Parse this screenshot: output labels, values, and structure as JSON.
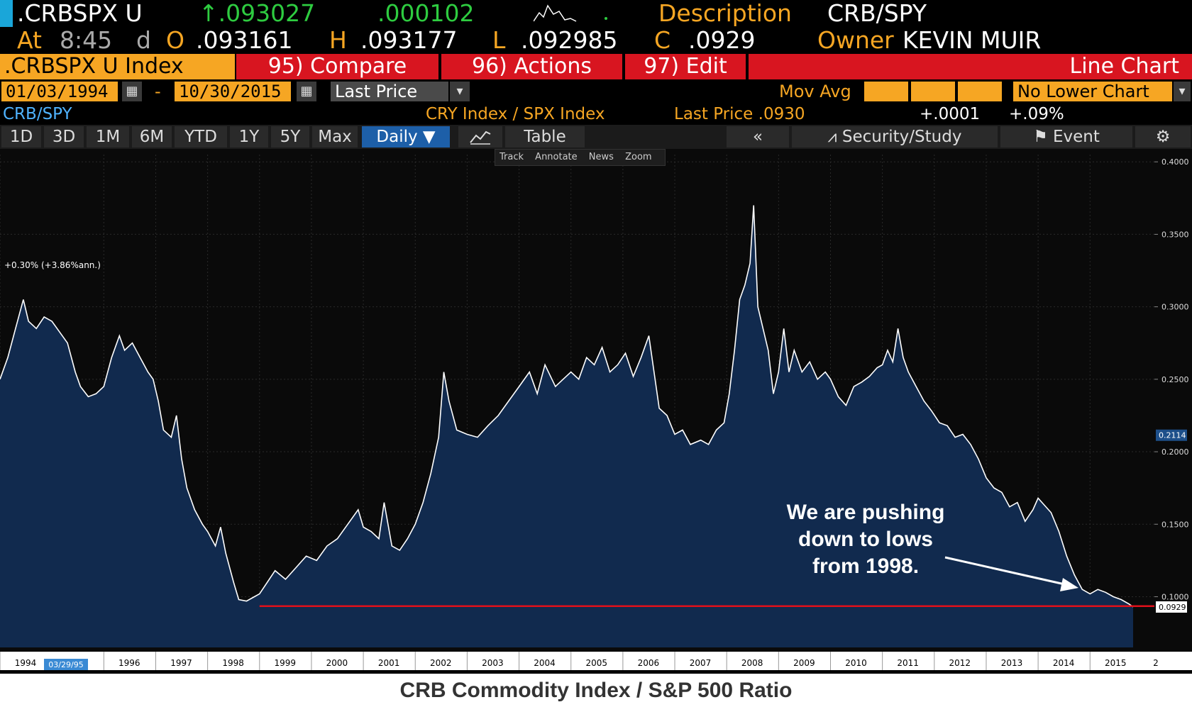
{
  "header": {
    "ticker": ".CRBSPX U",
    "last": "↑.093027",
    "change": ".000102",
    "description_label": "Description",
    "description_value": "CRB/SPY",
    "at_label": "At",
    "time": "8:45",
    "d_label": "d",
    "open_label": "O",
    "open": ".093161",
    "high_label": "H",
    "high": ".093177",
    "low_label": "L",
    "low": ".092985",
    "close_label": "C",
    "close": ".0929",
    "owner_label": "Owner",
    "owner": "KEVIN MUIR"
  },
  "menu": {
    "index_name": ".CRBSPX U Index",
    "compare": "95) Compare",
    "actions": "96) Actions",
    "edit": "97) Edit",
    "chart_type": "Line Chart"
  },
  "range": {
    "start_date": "01/03/1994",
    "dash": "-",
    "end_date": "10/30/2015",
    "price_field": "Last Price",
    "mov_avg": "Mov Avg",
    "lower_chart": "No Lower Chart"
  },
  "info": {
    "security": "CRB/SPY",
    "formula": "CRY Index / SPX Index",
    "last_price": "Last Price .0930",
    "net_change": "+.0001",
    "pct_change": "+.09%"
  },
  "tabs": [
    "1D",
    "3D",
    "1M",
    "6M",
    "YTD",
    "1Y",
    "5Y",
    "Max"
  ],
  "daily": "Daily ▼",
  "table_label": "Table",
  "back_label": "«",
  "study_label": "Security/Study",
  "event_label": "Event",
  "mini_tools": [
    "Track",
    "Annotate",
    "News",
    "Zoom"
  ],
  "colors": {
    "amber": "#f6a623",
    "red_bar": "#d81520",
    "area_fill": "#112a4e",
    "line": "#ffffff",
    "support_line": "#e0101a"
  },
  "chart_data": {
    "type": "area",
    "title": "CRB Commodity Index / S&P 500 Ratio",
    "annotation_top": "+0.30% (+3.86%ann.)",
    "annotation_callout": [
      "We are pushing",
      "down to lows",
      "from 1998."
    ],
    "x_ticks": [
      "1994",
      "1996",
      "1997",
      "1998",
      "1999",
      "2000",
      "2001",
      "2002",
      "2003",
      "2004",
      "2005",
      "2006",
      "2007",
      "2008",
      "2009",
      "2010",
      "2011",
      "2012",
      "2013",
      "2014",
      "2015",
      "2"
    ],
    "x_tick_date_label": "03/29/95",
    "y_ticks": [
      "0.4000",
      "0.3500",
      "0.3000",
      "0.2500",
      "0.2000",
      "0.1500",
      "0.1000"
    ],
    "y_range": [
      0.065,
      0.405
    ],
    "x_range": [
      1994.0,
      2015.83
    ],
    "marker_value_1": "0.2114",
    "marker_value_2": "0.0929",
    "support_level": 0.0935,
    "support_start_year": 1999.0,
    "series": [
      {
        "points": [
          [
            1994.0,
            0.25
          ],
          [
            1994.15,
            0.265
          ],
          [
            1994.3,
            0.285
          ],
          [
            1994.45,
            0.305
          ],
          [
            1994.55,
            0.29
          ],
          [
            1994.7,
            0.285
          ],
          [
            1994.85,
            0.293
          ],
          [
            1995.0,
            0.29
          ],
          [
            1995.1,
            0.285
          ],
          [
            1995.3,
            0.275
          ],
          [
            1995.45,
            0.255
          ],
          [
            1995.55,
            0.245
          ],
          [
            1995.7,
            0.238
          ],
          [
            1995.85,
            0.24
          ],
          [
            1996.0,
            0.245
          ],
          [
            1996.15,
            0.265
          ],
          [
            1996.3,
            0.28
          ],
          [
            1996.4,
            0.27
          ],
          [
            1996.55,
            0.275
          ],
          [
            1996.7,
            0.265
          ],
          [
            1996.85,
            0.255
          ],
          [
            1996.95,
            0.25
          ],
          [
            1997.05,
            0.235
          ],
          [
            1997.15,
            0.215
          ],
          [
            1997.3,
            0.21
          ],
          [
            1997.4,
            0.225
          ],
          [
            1997.5,
            0.195
          ],
          [
            1997.6,
            0.175
          ],
          [
            1997.75,
            0.16
          ],
          [
            1997.9,
            0.15
          ],
          [
            1998.0,
            0.145
          ],
          [
            1998.15,
            0.135
          ],
          [
            1998.25,
            0.148
          ],
          [
            1998.35,
            0.13
          ],
          [
            1998.5,
            0.11
          ],
          [
            1998.6,
            0.098
          ],
          [
            1998.75,
            0.097
          ],
          [
            1998.9,
            0.1
          ],
          [
            1999.0,
            0.102
          ],
          [
            1999.15,
            0.11
          ],
          [
            1999.3,
            0.118
          ],
          [
            1999.5,
            0.112
          ],
          [
            1999.7,
            0.12
          ],
          [
            1999.9,
            0.128
          ],
          [
            2000.1,
            0.125
          ],
          [
            2000.3,
            0.135
          ],
          [
            2000.5,
            0.14
          ],
          [
            2000.7,
            0.15
          ],
          [
            2000.9,
            0.16
          ],
          [
            2001.0,
            0.148
          ],
          [
            2001.15,
            0.145
          ],
          [
            2001.3,
            0.14
          ],
          [
            2001.4,
            0.165
          ],
          [
            2001.55,
            0.135
          ],
          [
            2001.7,
            0.132
          ],
          [
            2001.85,
            0.14
          ],
          [
            2002.0,
            0.15
          ],
          [
            2002.15,
            0.165
          ],
          [
            2002.3,
            0.185
          ],
          [
            2002.45,
            0.21
          ],
          [
            2002.55,
            0.255
          ],
          [
            2002.65,
            0.235
          ],
          [
            2002.8,
            0.215
          ],
          [
            2003.0,
            0.212
          ],
          [
            2003.2,
            0.21
          ],
          [
            2003.4,
            0.218
          ],
          [
            2003.6,
            0.225
          ],
          [
            2003.8,
            0.235
          ],
          [
            2004.0,
            0.245
          ],
          [
            2004.2,
            0.255
          ],
          [
            2004.35,
            0.24
          ],
          [
            2004.5,
            0.26
          ],
          [
            2004.7,
            0.245
          ],
          [
            2004.85,
            0.25
          ],
          [
            2005.0,
            0.255
          ],
          [
            2005.15,
            0.25
          ],
          [
            2005.3,
            0.265
          ],
          [
            2005.45,
            0.26
          ],
          [
            2005.6,
            0.272
          ],
          [
            2005.75,
            0.255
          ],
          [
            2005.9,
            0.26
          ],
          [
            2006.05,
            0.268
          ],
          [
            2006.2,
            0.252
          ],
          [
            2006.35,
            0.265
          ],
          [
            2006.5,
            0.28
          ],
          [
            2006.6,
            0.255
          ],
          [
            2006.7,
            0.23
          ],
          [
            2006.85,
            0.225
          ],
          [
            2007.0,
            0.212
          ],
          [
            2007.15,
            0.215
          ],
          [
            2007.3,
            0.205
          ],
          [
            2007.5,
            0.208
          ],
          [
            2007.65,
            0.205
          ],
          [
            2007.8,
            0.215
          ],
          [
            2007.95,
            0.22
          ],
          [
            2008.05,
            0.24
          ],
          [
            2008.15,
            0.27
          ],
          [
            2008.25,
            0.305
          ],
          [
            2008.35,
            0.315
          ],
          [
            2008.45,
            0.33
          ],
          [
            2008.52,
            0.37
          ],
          [
            2008.6,
            0.3
          ],
          [
            2008.7,
            0.285
          ],
          [
            2008.8,
            0.27
          ],
          [
            2008.9,
            0.24
          ],
          [
            2009.0,
            0.255
          ],
          [
            2009.1,
            0.285
          ],
          [
            2009.2,
            0.255
          ],
          [
            2009.3,
            0.27
          ],
          [
            2009.45,
            0.255
          ],
          [
            2009.6,
            0.262
          ],
          [
            2009.75,
            0.25
          ],
          [
            2009.9,
            0.255
          ],
          [
            2010.0,
            0.25
          ],
          [
            2010.15,
            0.238
          ],
          [
            2010.3,
            0.232
          ],
          [
            2010.45,
            0.245
          ],
          [
            2010.6,
            0.248
          ],
          [
            2010.75,
            0.252
          ],
          [
            2010.9,
            0.258
          ],
          [
            2011.0,
            0.26
          ],
          [
            2011.1,
            0.27
          ],
          [
            2011.2,
            0.262
          ],
          [
            2011.3,
            0.285
          ],
          [
            2011.4,
            0.265
          ],
          [
            2011.5,
            0.255
          ],
          [
            2011.65,
            0.245
          ],
          [
            2011.8,
            0.235
          ],
          [
            2011.95,
            0.228
          ],
          [
            2012.1,
            0.22
          ],
          [
            2012.25,
            0.218
          ],
          [
            2012.4,
            0.21
          ],
          [
            2012.55,
            0.212
          ],
          [
            2012.7,
            0.205
          ],
          [
            2012.85,
            0.195
          ],
          [
            2013.0,
            0.182
          ],
          [
            2013.15,
            0.175
          ],
          [
            2013.3,
            0.172
          ],
          [
            2013.45,
            0.162
          ],
          [
            2013.6,
            0.165
          ],
          [
            2013.75,
            0.152
          ],
          [
            2013.9,
            0.16
          ],
          [
            2014.0,
            0.168
          ],
          [
            2014.1,
            0.164
          ],
          [
            2014.25,
            0.158
          ],
          [
            2014.4,
            0.145
          ],
          [
            2014.55,
            0.128
          ],
          [
            2014.7,
            0.115
          ],
          [
            2014.85,
            0.105
          ],
          [
            2015.0,
            0.102
          ],
          [
            2015.15,
            0.105
          ],
          [
            2015.3,
            0.103
          ],
          [
            2015.45,
            0.1
          ],
          [
            2015.6,
            0.098
          ],
          [
            2015.75,
            0.095
          ],
          [
            2015.83,
            0.093
          ]
        ]
      }
    ]
  }
}
